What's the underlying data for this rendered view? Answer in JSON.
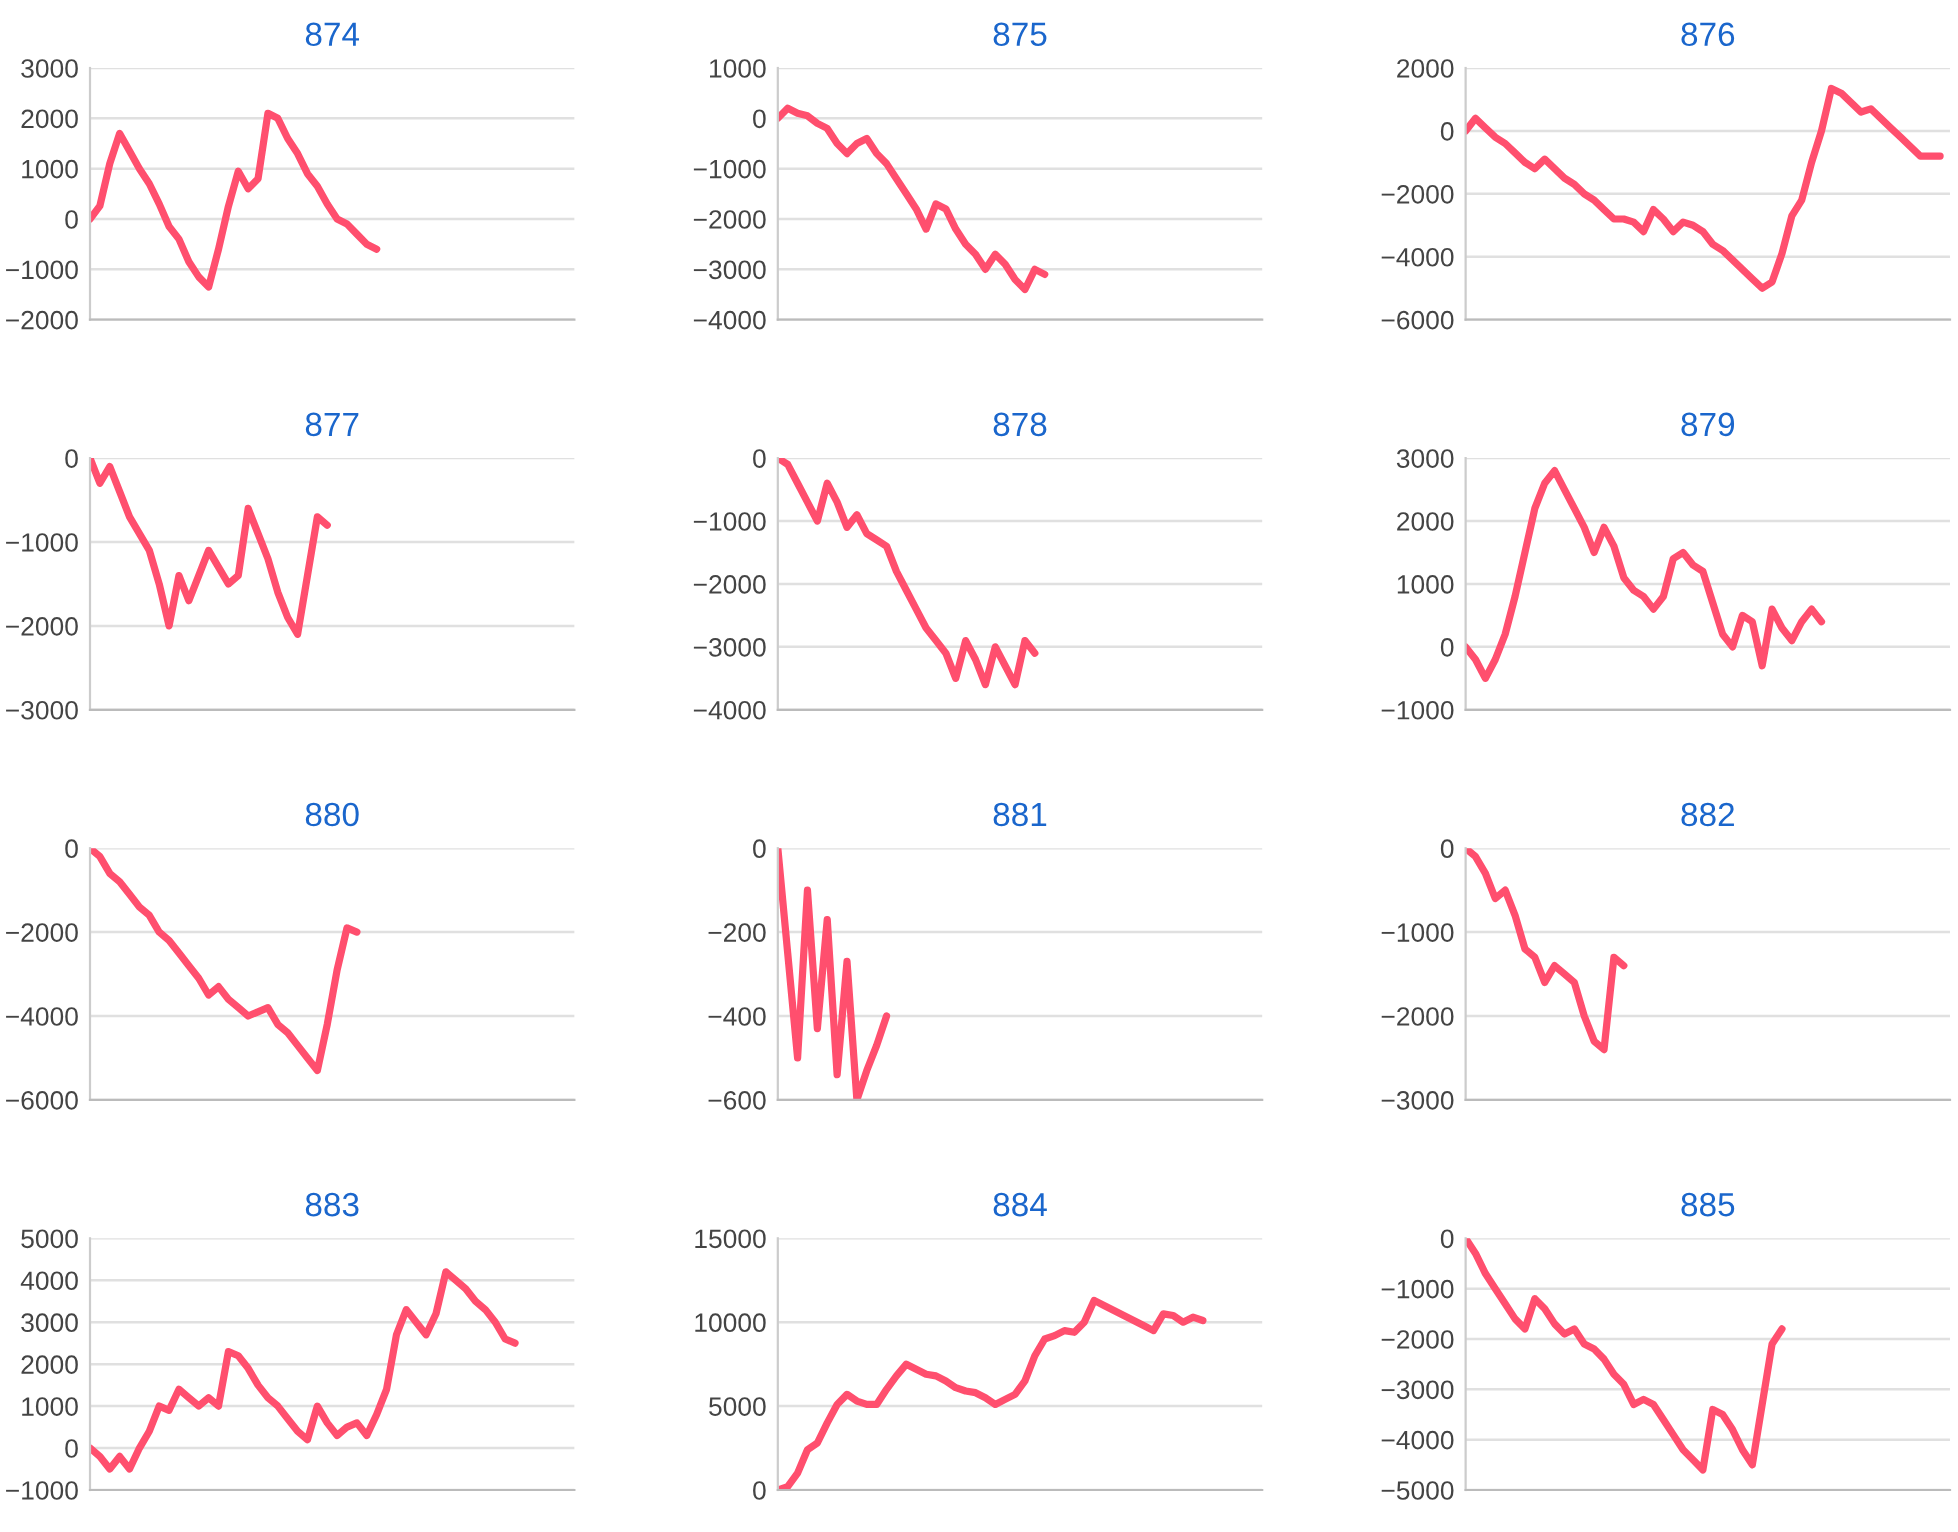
{
  "chart_data": [
    {
      "type": "line",
      "title": "874",
      "categories": [
        null,
        null,
        null,
        null,
        null,
        null,
        null,
        null,
        null,
        null,
        null,
        null,
        null,
        null,
        null,
        null,
        null,
        null,
        null,
        null,
        null,
        null,
        null,
        null,
        null,
        null,
        null,
        null,
        null,
        null,
        null,
        null,
        null,
        null,
        null,
        null,
        null,
        null,
        null,
        null,
        null,
        null,
        null,
        null,
        null,
        null,
        null,
        null,
        null,
        null
      ],
      "ylim": [
        -2000,
        3000
      ],
      "yticks": [
        -2000,
        -1000,
        0,
        1000,
        2000,
        3000
      ],
      "grid": "y",
      "series": [
        {
          "color": "#ff4f6e",
          "values": [
            0,
            260,
            1100,
            1700,
            1350,
            1000,
            700,
            300,
            -150,
            -400,
            -850,
            -1150,
            -1350,
            -600,
            250,
            950,
            600,
            800,
            2100,
            2000,
            1600,
            1300,
            900,
            650,
            300,
            0,
            -100,
            -300,
            -500,
            -600,
            null,
            null,
            null,
            null,
            null,
            null,
            null,
            null,
            null,
            null,
            null,
            null,
            null,
            null,
            null,
            null,
            null,
            null,
            null,
            null
          ]
        }
      ]
    },
    {
      "type": "line",
      "title": "875",
      "categories": [
        null,
        null,
        null,
        null,
        null,
        null,
        null,
        null,
        null,
        null,
        null,
        null,
        null,
        null,
        null,
        null,
        null,
        null,
        null,
        null,
        null,
        null,
        null,
        null,
        null,
        null,
        null,
        null,
        null,
        null,
        null,
        null,
        null,
        null,
        null,
        null,
        null,
        null,
        null,
        null,
        null,
        null,
        null,
        null,
        null,
        null,
        null,
        null,
        null,
        null
      ],
      "ylim": [
        -4000,
        1000
      ],
      "yticks": [
        -4000,
        -3000,
        -2000,
        -1000,
        0,
        1000
      ],
      "grid": "y",
      "series": [
        {
          "color": "#ff4f6e",
          "values": [
            0,
            200,
            100,
            50,
            -100,
            -200,
            -500,
            -700,
            -500,
            -400,
            -700,
            -900,
            -1200,
            -1500,
            -1800,
            -2200,
            -1700,
            -1800,
            -2200,
            -2500,
            -2700,
            -3000,
            -2700,
            -2900,
            -3200,
            -3400,
            -3000,
            -3100,
            null,
            null,
            null,
            null,
            null,
            null,
            null,
            null,
            null,
            null,
            null,
            null,
            null,
            null,
            null,
            null,
            null,
            null,
            null,
            null,
            null,
            null
          ]
        }
      ]
    },
    {
      "type": "line",
      "title": "876",
      "categories": [
        null,
        null,
        null,
        null,
        null,
        null,
        null,
        null,
        null,
        null,
        null,
        null,
        null,
        null,
        null,
        null,
        null,
        null,
        null,
        null,
        null,
        null,
        null,
        null,
        null,
        null,
        null,
        null,
        null,
        null,
        null,
        null,
        null,
        null,
        null,
        null,
        null,
        null,
        null,
        null,
        null,
        null,
        null,
        null,
        null,
        null,
        null,
        null,
        null,
        null
      ],
      "ylim": [
        -6000,
        2000
      ],
      "yticks": [
        -6000,
        -4000,
        -2000,
        0,
        2000
      ],
      "grid": "y",
      "series": [
        {
          "color": "#ff4f6e",
          "values": [
            0,
            400,
            100,
            -200,
            -400,
            -700,
            -1000,
            -1200,
            -900,
            -1200,
            -1500,
            -1700,
            -2000,
            -2200,
            -2500,
            -2800,
            -2800,
            -2900,
            -3200,
            -2500,
            -2800,
            -3200,
            -2900,
            -3000,
            -3200,
            -3600,
            -3800,
            -4100,
            -4400,
            -4700,
            -5000,
            -4800,
            -3900,
            -2700,
            -2200,
            -1000,
            0,
            1350,
            1200,
            900,
            600,
            700,
            400,
            100,
            -200,
            -500,
            -800,
            -800,
            -800,
            null
          ]
        }
      ]
    },
    {
      "type": "line",
      "title": "877",
      "categories": [
        null,
        null,
        null,
        null,
        null,
        null,
        null,
        null,
        null,
        null,
        null,
        null,
        null,
        null,
        null,
        null,
        null,
        null,
        null,
        null,
        null,
        null,
        null,
        null,
        null,
        null,
        null,
        null,
        null,
        null,
        null,
        null,
        null,
        null,
        null,
        null,
        null,
        null,
        null,
        null,
        null,
        null,
        null,
        null,
        null,
        null,
        null,
        null,
        null,
        null
      ],
      "ylim": [
        -3000,
        0
      ],
      "yticks": [
        -3000,
        -2000,
        -1000,
        0
      ],
      "grid": "y",
      "series": [
        {
          "color": "#ff4f6e",
          "values": [
            0,
            -300,
            -100,
            -400,
            -700,
            -900,
            -1100,
            -1500,
            -2000,
            -1400,
            -1700,
            -1400,
            -1100,
            -1300,
            -1500,
            -1400,
            -600,
            -900,
            -1200,
            -1600,
            -1900,
            -2100,
            -1400,
            -700,
            -800,
            null,
            null,
            null,
            null,
            null,
            null,
            null,
            null,
            null,
            null,
            null,
            null,
            null,
            null,
            null,
            null,
            null,
            null,
            null,
            null,
            null,
            null,
            null,
            null,
            null
          ]
        }
      ]
    },
    {
      "type": "line",
      "title": "878",
      "categories": [
        null,
        null,
        null,
        null,
        null,
        null,
        null,
        null,
        null,
        null,
        null,
        null,
        null,
        null,
        null,
        null,
        null,
        null,
        null,
        null,
        null,
        null,
        null,
        null,
        null,
        null,
        null,
        null,
        null,
        null,
        null,
        null,
        null,
        null,
        null,
        null,
        null,
        null,
        null,
        null,
        null,
        null,
        null,
        null,
        null,
        null,
        null,
        null,
        null,
        null
      ],
      "ylim": [
        -4000,
        0
      ],
      "yticks": [
        -4000,
        -3000,
        -2000,
        -1000,
        0
      ],
      "grid": "y",
      "series": [
        {
          "color": "#ff4f6e",
          "values": [
            0,
            -100,
            -400,
            -700,
            -1000,
            -400,
            -700,
            -1100,
            -900,
            -1200,
            -1300,
            -1400,
            -1800,
            -2100,
            -2400,
            -2700,
            -2900,
            -3100,
            -3500,
            -2900,
            -3200,
            -3600,
            -3000,
            -3300,
            -3600,
            -2900,
            -3100,
            null,
            null,
            null,
            null,
            null,
            null,
            null,
            null,
            null,
            null,
            null,
            null,
            null,
            null,
            null,
            null,
            null,
            null,
            null,
            null,
            null,
            null,
            null
          ]
        }
      ]
    },
    {
      "type": "line",
      "title": "879",
      "categories": [
        null,
        null,
        null,
        null,
        null,
        null,
        null,
        null,
        null,
        null,
        null,
        null,
        null,
        null,
        null,
        null,
        null,
        null,
        null,
        null,
        null,
        null,
        null,
        null,
        null,
        null,
        null,
        null,
        null,
        null,
        null,
        null,
        null,
        null,
        null,
        null,
        null,
        null,
        null,
        null,
        null,
        null,
        null,
        null,
        null,
        null,
        null,
        null,
        null,
        null
      ],
      "ylim": [
        -1000,
        3000
      ],
      "yticks": [
        -1000,
        0,
        1000,
        2000,
        3000
      ],
      "grid": "y",
      "series": [
        {
          "color": "#ff4f6e",
          "values": [
            0,
            -200,
            -500,
            -200,
            200,
            800,
            1500,
            2200,
            2600,
            2800,
            2500,
            2200,
            1900,
            1500,
            1900,
            1600,
            1100,
            900,
            800,
            600,
            800,
            1400,
            1500,
            1300,
            1200,
            700,
            200,
            0,
            500,
            400,
            -300,
            600,
            300,
            100,
            400,
            600,
            400,
            null,
            null,
            null,
            null,
            null,
            null,
            null,
            null,
            null,
            null,
            null,
            null,
            null
          ]
        }
      ]
    },
    {
      "type": "line",
      "title": "880",
      "categories": [
        null,
        null,
        null,
        null,
        null,
        null,
        null,
        null,
        null,
        null,
        null,
        null,
        null,
        null,
        null,
        null,
        null,
        null,
        null,
        null,
        null,
        null,
        null,
        null,
        null,
        null,
        null,
        null,
        null,
        null,
        null,
        null,
        null,
        null,
        null,
        null,
        null,
        null,
        null,
        null,
        null,
        null,
        null,
        null,
        null,
        null,
        null,
        null,
        null,
        null
      ],
      "ylim": [
        -6000,
        0
      ],
      "yticks": [
        -6000,
        -4000,
        -2000,
        0
      ],
      "grid": "y",
      "series": [
        {
          "color": "#ff4f6e",
          "values": [
            0,
            -200,
            -600,
            -800,
            -1100,
            -1400,
            -1600,
            -2000,
            -2200,
            -2500,
            -2800,
            -3100,
            -3500,
            -3300,
            -3600,
            -3800,
            -4000,
            -3900,
            -3800,
            -4200,
            -4400,
            -4700,
            -5000,
            -5300,
            -4200,
            -2900,
            -1900,
            -2000,
            null,
            null,
            null,
            null,
            null,
            null,
            null,
            null,
            null,
            null,
            null,
            null,
            null,
            null,
            null,
            null,
            null,
            null,
            null,
            null,
            null,
            null
          ]
        }
      ]
    },
    {
      "type": "line",
      "title": "881",
      "categories": [
        null,
        null,
        null,
        null,
        null,
        null,
        null,
        null,
        null,
        null,
        null,
        null,
        null,
        null,
        null,
        null,
        null,
        null,
        null,
        null,
        null,
        null,
        null,
        null,
        null,
        null,
        null,
        null,
        null,
        null,
        null,
        null,
        null,
        null,
        null,
        null,
        null,
        null,
        null,
        null,
        null,
        null,
        null,
        null,
        null,
        null,
        null,
        null,
        null,
        null
      ],
      "ylim": [
        -600,
        0
      ],
      "yticks": [
        -600,
        -400,
        -200,
        0
      ],
      "grid": "y",
      "series": [
        {
          "color": "#ff4f6e",
          "values": [
            0,
            -250,
            -500,
            -100,
            -430,
            -170,
            -540,
            -270,
            -600,
            -530,
            -470,
            -400,
            null,
            null,
            null,
            null,
            null,
            null,
            null,
            null,
            null,
            null,
            null,
            null,
            null,
            null,
            null,
            null,
            null,
            null,
            null,
            null,
            null,
            null,
            null,
            null,
            null,
            null,
            null,
            null,
            null,
            null,
            null,
            null,
            null,
            null,
            null,
            null,
            null,
            null
          ]
        }
      ]
    },
    {
      "type": "line",
      "title": "882",
      "categories": [
        null,
        null,
        null,
        null,
        null,
        null,
        null,
        null,
        null,
        null,
        null,
        null,
        null,
        null,
        null,
        null,
        null,
        null,
        null,
        null,
        null,
        null,
        null,
        null,
        null,
        null,
        null,
        null,
        null,
        null,
        null,
        null,
        null,
        null,
        null,
        null,
        null,
        null,
        null,
        null,
        null,
        null,
        null,
        null,
        null,
        null,
        null,
        null,
        null,
        null
      ],
      "ylim": [
        -3000,
        0
      ],
      "yticks": [
        -3000,
        -2000,
        -1000,
        0
      ],
      "grid": "y",
      "series": [
        {
          "color": "#ff4f6e",
          "values": [
            0,
            -100,
            -300,
            -600,
            -500,
            -800,
            -1200,
            -1300,
            -1600,
            -1400,
            -1500,
            -1600,
            -2000,
            -2300,
            -2400,
            -1300,
            -1400,
            null,
            null,
            null,
            null,
            null,
            null,
            null,
            null,
            null,
            null,
            null,
            null,
            null,
            null,
            null,
            null,
            null,
            null,
            null,
            null,
            null,
            null,
            null,
            null,
            null,
            null,
            null,
            null,
            null,
            null,
            null,
            null,
            null
          ]
        }
      ]
    },
    {
      "type": "line",
      "title": "883",
      "categories": [
        null,
        null,
        null,
        null,
        null,
        null,
        null,
        null,
        null,
        null,
        null,
        null,
        null,
        null,
        null,
        null,
        null,
        null,
        null,
        null,
        null,
        null,
        null,
        null,
        null,
        null,
        null,
        null,
        null,
        null,
        null,
        null,
        null,
        null,
        null,
        null,
        null,
        null,
        null,
        null,
        null,
        null,
        null,
        null,
        null,
        null,
        null,
        null,
        null,
        null
      ],
      "ylim": [
        -1000,
        5000
      ],
      "yticks": [
        -1000,
        0,
        1000,
        2000,
        3000,
        4000,
        5000
      ],
      "grid": "y",
      "series": [
        {
          "color": "#ff4f6e",
          "values": [
            0,
            -200,
            -500,
            -200,
            -500,
            0,
            400,
            1000,
            900,
            1400,
            1200,
            1000,
            1200,
            1000,
            2300,
            2200,
            1900,
            1500,
            1200,
            1000,
            700,
            400,
            200,
            1000,
            600,
            300,
            500,
            600,
            300,
            800,
            1400,
            2700,
            3300,
            3000,
            2700,
            3200,
            4200,
            4000,
            3800,
            3500,
            3300,
            3000,
            2600,
            2500,
            null,
            null,
            null,
            null,
            null,
            null
          ]
        }
      ]
    },
    {
      "type": "line",
      "title": "884",
      "categories": [
        null,
        null,
        null,
        null,
        null,
        null,
        null,
        null,
        null,
        null,
        null,
        null,
        null,
        null,
        null,
        null,
        null,
        null,
        null,
        null,
        null,
        null,
        null,
        null,
        null,
        null,
        null,
        null,
        null,
        null,
        null,
        null,
        null,
        null,
        null,
        null,
        null,
        null,
        null,
        null,
        null,
        null,
        null,
        null,
        null,
        null,
        null,
        null,
        null,
        null
      ],
      "ylim": [
        0,
        15000
      ],
      "yticks": [
        0,
        5000,
        10000,
        15000
      ],
      "grid": "y",
      "series": [
        {
          "color": "#ff4f6e",
          "values": [
            0,
            200,
            1000,
            2400,
            2800,
            4000,
            5100,
            5700,
            5300,
            5100,
            5100,
            6000,
            6800,
            7500,
            7200,
            6900,
            6800,
            6500,
            6100,
            5900,
            5800,
            5500,
            5100,
            5400,
            5700,
            6500,
            8000,
            9000,
            9200,
            9500,
            9400,
            10000,
            11300,
            11000,
            10700,
            10400,
            10100,
            9800,
            9500,
            10500,
            10400,
            10000,
            10300,
            10100,
            null,
            null,
            null,
            null,
            null,
            null
          ]
        }
      ]
    },
    {
      "type": "line",
      "title": "885",
      "categories": [
        null,
        null,
        null,
        null,
        null,
        null,
        null,
        null,
        null,
        null,
        null,
        null,
        null,
        null,
        null,
        null,
        null,
        null,
        null,
        null,
        null,
        null,
        null,
        null,
        null,
        null,
        null,
        null,
        null,
        null,
        null,
        null,
        null,
        null,
        null,
        null,
        null,
        null,
        null,
        null,
        null,
        null,
        null,
        null,
        null,
        null,
        null,
        null,
        null,
        null
      ],
      "ylim": [
        -5000,
        0
      ],
      "yticks": [
        -5000,
        -4000,
        -3000,
        -2000,
        -1000,
        0
      ],
      "grid": "y",
      "series": [
        {
          "color": "#ff4f6e",
          "values": [
            0,
            -300,
            -700,
            -1000,
            -1300,
            -1600,
            -1800,
            -1200,
            -1400,
            -1700,
            -1900,
            -1800,
            -2100,
            -2200,
            -2400,
            -2700,
            -2900,
            -3300,
            -3200,
            -3300,
            -3600,
            -3900,
            -4200,
            -4400,
            -4600,
            -3400,
            -3500,
            -3800,
            -4200,
            -4500,
            -3300,
            -2100,
            -1800,
            null,
            null,
            null,
            null,
            null,
            null,
            null,
            null,
            null,
            null,
            null,
            null,
            null,
            null,
            null,
            null,
            null
          ]
        }
      ]
    }
  ]
}
